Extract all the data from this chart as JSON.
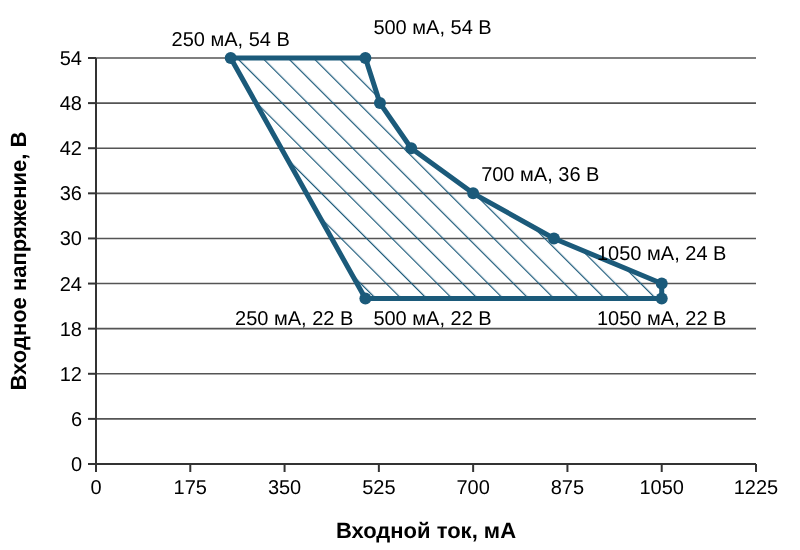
{
  "chart_data": {
    "type": "area",
    "xlabel": "Входной ток, мА",
    "ylabel": "Входное напряжение, В",
    "xlim": [
      0,
      1225
    ],
    "xticks": [
      0,
      175,
      350,
      525,
      700,
      875,
      1050,
      1225
    ],
    "ylim": [
      0,
      54
    ],
    "yticks": [
      0,
      6,
      12,
      18,
      24,
      30,
      36,
      42,
      48,
      54
    ],
    "grid": "y",
    "marker": "circle",
    "line_style": "solid",
    "series": [
      {
        "color": "#1b5a7a",
        "x": [
          250,
          500,
          527,
          585,
          700,
          850,
          1050,
          1050,
          500
        ],
        "values": [
          54,
          54,
          48,
          42,
          36,
          30,
          24,
          22,
          22
        ]
      }
    ],
    "annotations": [
      {
        "text": "250 мА, 54 В",
        "x": 250,
        "y": 54
      },
      {
        "text": "500 мА, 54 В",
        "x": 500,
        "y": 54
      },
      {
        "text": "700 мА, 36 В",
        "x": 700,
        "y": 36
      },
      {
        "text": "1050 мА, 24 В",
        "x": 1050,
        "y": 24
      },
      "250 мА, 22 В",
      {
        "text": "500 мА, 22 В",
        "x": 500,
        "y": 22
      },
      {
        "text": "1050 мА, 22 В",
        "x": 1050,
        "y": 22
      }
    ]
  }
}
